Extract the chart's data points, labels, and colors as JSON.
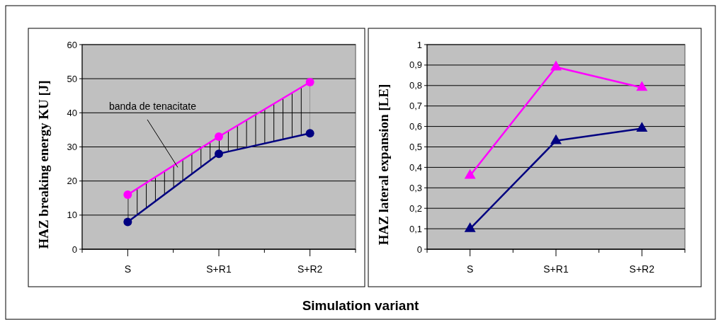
{
  "chart_data": [
    {
      "type": "line",
      "ylabel": "HAZ breaking energy KU [J]",
      "xlabel": "Simulation variant",
      "categories": [
        "S",
        "S+R1",
        "S+R2"
      ],
      "ylim": [
        0,
        60
      ],
      "yticks": [
        0,
        10,
        20,
        30,
        40,
        50,
        60
      ],
      "grid": "y",
      "marker": "circle",
      "annotations": [
        "banda de tenacitate"
      ],
      "series": [
        {
          "color": "#ff00ff",
          "values": [
            16,
            33,
            49
          ],
          "lower": [
            8,
            28,
            34
          ],
          "upper": [
            16,
            33,
            49
          ]
        },
        {
          "color": "#000080",
          "values": [
            8,
            28,
            34
          ]
        }
      ]
    },
    {
      "type": "line",
      "ylabel": "HAZ lateral expansion [LE]",
      "categories": [
        "S",
        "S+R1",
        "S+R2"
      ],
      "ylim": [
        0,
        1
      ],
      "yticks": [
        0,
        {
          "value": 0.1,
          "label": "0,1"
        },
        {
          "value": 0.2,
          "label": "0,2"
        },
        {
          "value": 0.3,
          "label": "0,3"
        },
        {
          "value": 0.4,
          "label": "0,4"
        },
        {
          "value": 0.5,
          "label": "0,5"
        },
        {
          "value": 0.6,
          "label": "0,6"
        },
        {
          "value": 0.7,
          "label": "0,7"
        },
        {
          "value": 0.8,
          "label": "0,8"
        },
        {
          "value": 0.9,
          "label": "0,9"
        },
        1
      ],
      "grid": "y",
      "marker": "triangle",
      "series": [
        {
          "color": "#ff00ff",
          "values": [
            0.36,
            0.89,
            0.79
          ]
        },
        {
          "color": "#000080",
          "values": [
            0.1,
            0.53,
            0.59
          ]
        }
      ]
    }
  ]
}
